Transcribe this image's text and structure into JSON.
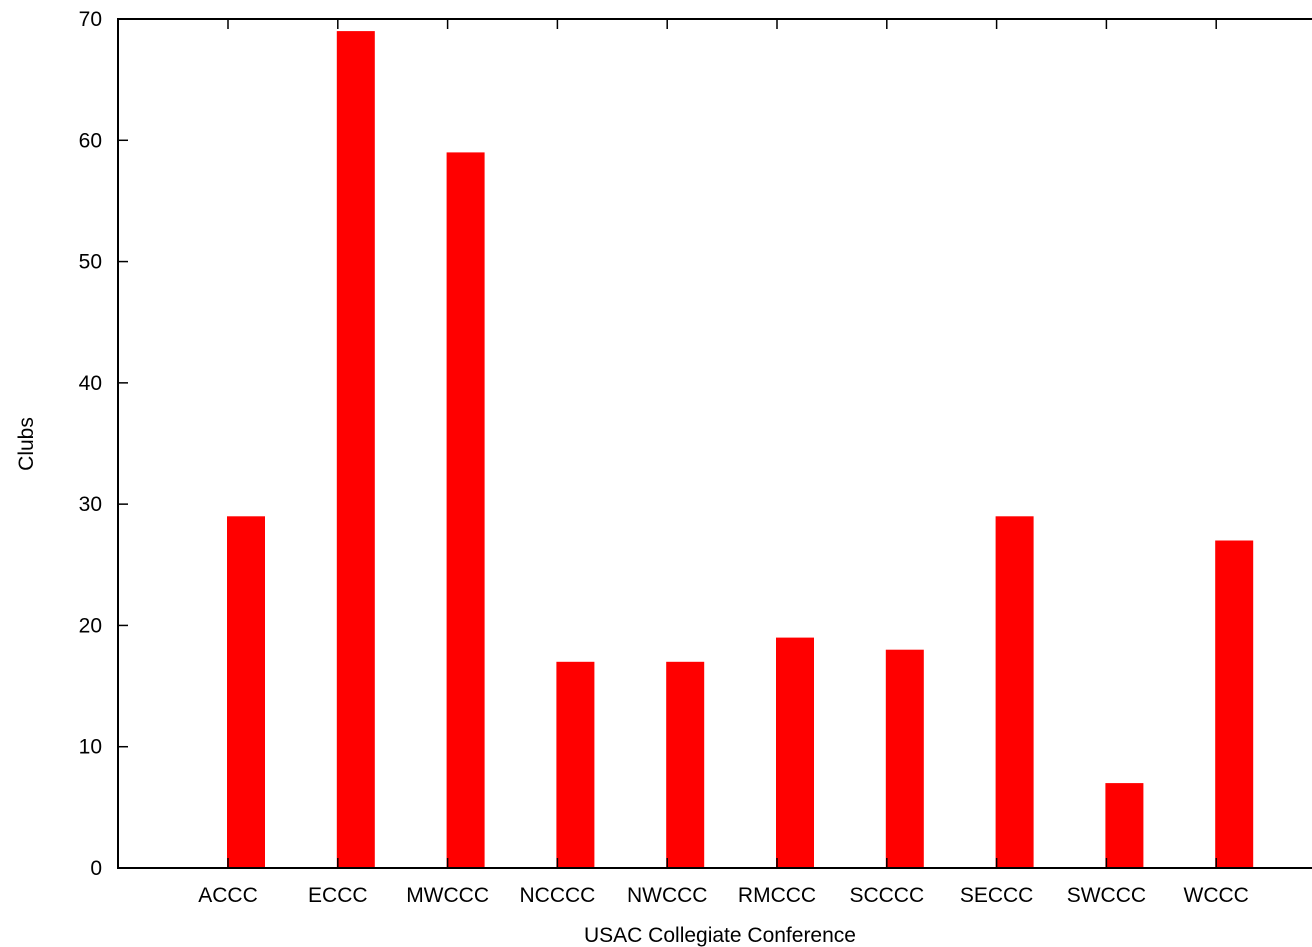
{
  "chart_data": {
    "type": "bar",
    "xlabel": "USAC Collegiate Conference",
    "ylabel": "Clubs",
    "categories": [
      "ACCC",
      "ECCC",
      "MWCCC",
      "NCCCC",
      "NWCCC",
      "RMCCC",
      "SCCCC",
      "SECCC",
      "SWCCC",
      "WCCC"
    ],
    "values": [
      29,
      69,
      59,
      17,
      17,
      19,
      18,
      29,
      7,
      27
    ],
    "ylim": [
      0,
      70
    ],
    "yticks": [
      0,
      10,
      20,
      30,
      40,
      50,
      60,
      70
    ],
    "grid": false,
    "legend": "none",
    "bar_color": "#ff0000"
  }
}
